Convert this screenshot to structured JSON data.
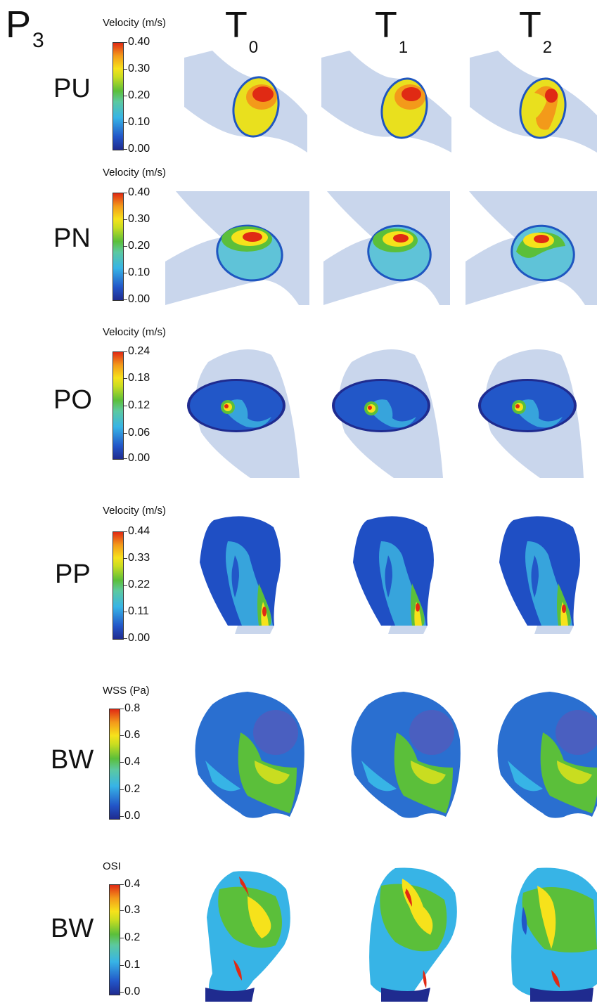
{
  "patient": {
    "letter": "P",
    "sub": "3"
  },
  "columns": [
    {
      "letter": "T",
      "sub": "0"
    },
    {
      "letter": "T",
      "sub": "1"
    },
    {
      "letter": "T",
      "sub": "2"
    }
  ],
  "rows": [
    {
      "label": "PU",
      "colorbar": {
        "title": "Velocity (m/s)",
        "ticks": [
          "0.40",
          "0.30",
          "0.20",
          "0.10",
          "0.00"
        ]
      }
    },
    {
      "label": "PN",
      "colorbar": {
        "title": "Velocity (m/s)",
        "ticks": [
          "0.40",
          "0.30",
          "0.20",
          "0.10",
          "0.00"
        ]
      }
    },
    {
      "label": "PO",
      "colorbar": {
        "title": "Velocity (m/s)",
        "ticks": [
          "0.24",
          "0.18",
          "0.12",
          "0.06",
          "0.00"
        ]
      }
    },
    {
      "label": "PP",
      "colorbar": {
        "title": "Velocity (m/s)",
        "ticks": [
          "0.44",
          "0.33",
          "0.22",
          "0.11",
          "0.00"
        ]
      }
    },
    {
      "label": "BW",
      "colorbar": {
        "title": "WSS (Pa)",
        "ticks": [
          "0.8",
          "0.6",
          "0.4",
          "0.2",
          "0.0"
        ]
      }
    },
    {
      "label": "BW",
      "colorbar": {
        "title": "OSI",
        "ticks": [
          "0.4",
          "0.3",
          "0.2",
          "0.1",
          "0.0"
        ]
      }
    }
  ],
  "colors": {
    "vessel": "#c9d6ec",
    "low": "#1f2b8f",
    "cyan": "#37b4e6",
    "green": "#5bbf3a",
    "yellow": "#f6e21b",
    "orange": "#f39a1a",
    "red": "#e02a14"
  }
}
